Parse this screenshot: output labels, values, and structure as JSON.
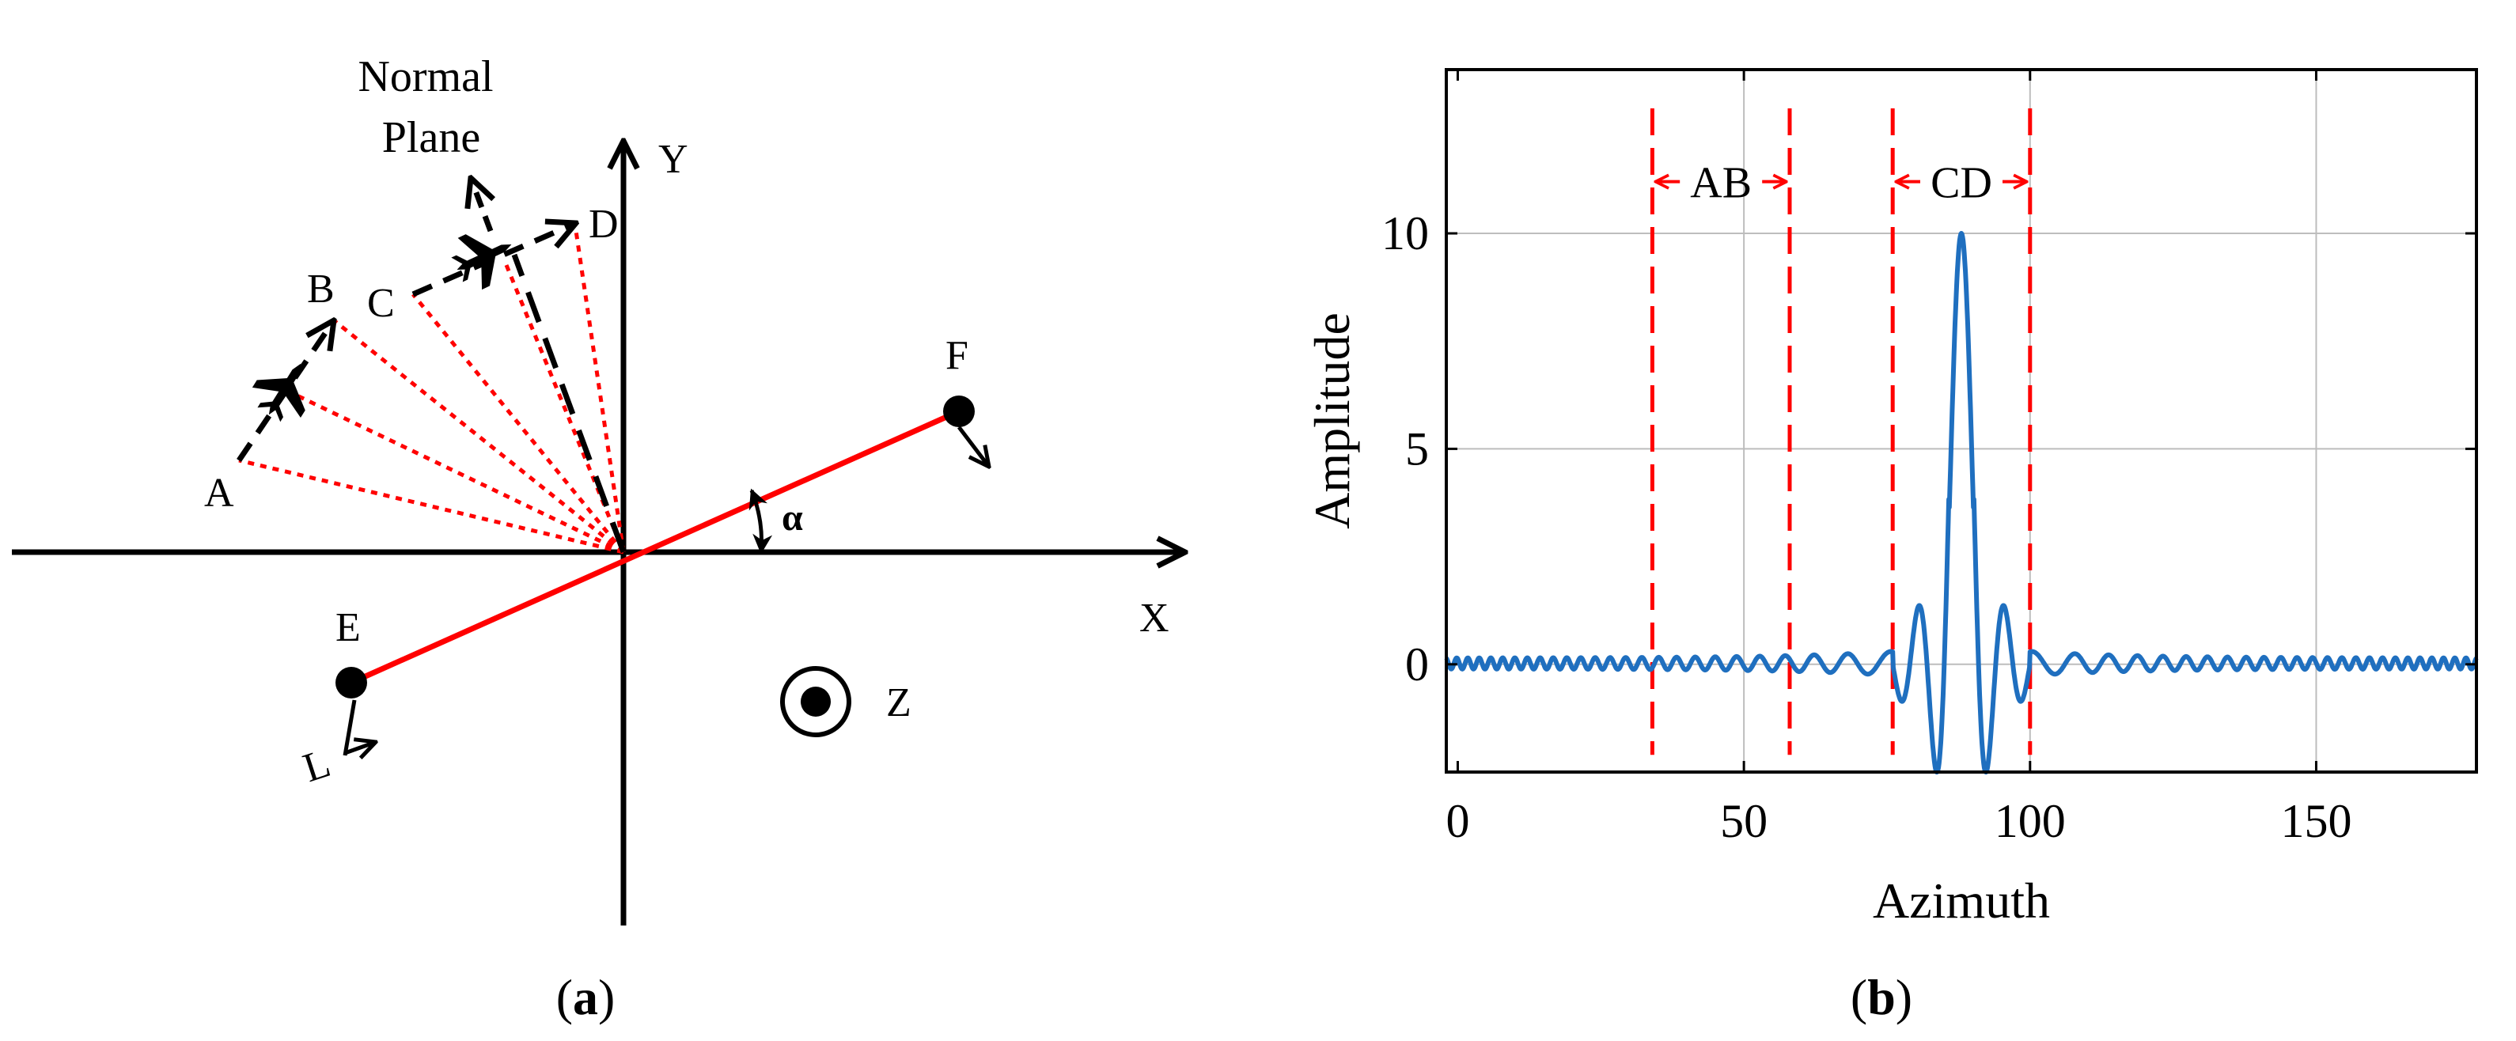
{
  "panel_a": {
    "caption": "(a)",
    "caption_letter": "a",
    "axis_x_label": "X",
    "axis_y_label": "Y",
    "axis_z_label": "Z",
    "normal_plane_label_line1": "Normal",
    "normal_plane_label_line2": "Plane",
    "angle_label": "α",
    "point_labels": {
      "A": "A",
      "B": "B",
      "C": "C",
      "D": "D",
      "E": "E",
      "F": "F"
    },
    "antenna_label": "L",
    "colors": {
      "baseline": "#ff0000",
      "los": "#ff0000",
      "axis": "#000000"
    },
    "icons": [
      "airplane-icon",
      "airplane-icon",
      "z-axis-out-of-page-icon"
    ]
  },
  "panel_b": {
    "caption": "(b)",
    "caption_letter": "b",
    "interval_labels": [
      "AB",
      "CD"
    ],
    "colors": {
      "curve": "#1f6fbf",
      "markers": "#ff0000",
      "grid": "#bbbbbb"
    }
  },
  "chart_data": {
    "type": "line",
    "title": "",
    "xlabel": "Azimuth",
    "ylabel": "Amplitude",
    "xlim": [
      -2,
      178
    ],
    "ylim": [
      -2.5,
      13.8
    ],
    "xticks": [
      0,
      50,
      100,
      150
    ],
    "yticks": [
      0,
      5,
      10
    ],
    "grid": true,
    "legend": "none",
    "series": [
      {
        "peak_x": 88,
        "peak_y": 10,
        "main_lobe_min_y": -2.1,
        "first_sidelobe_y": 1.35,
        "baseline_sidelobe_y": 0.15
      }
    ],
    "vlines_x": [
      34,
      58,
      76,
      100
    ],
    "intervals": [
      {
        "label": "AB",
        "from": 34,
        "to": 58
      },
      {
        "label": "CD",
        "from": 76,
        "to": 100
      }
    ]
  }
}
